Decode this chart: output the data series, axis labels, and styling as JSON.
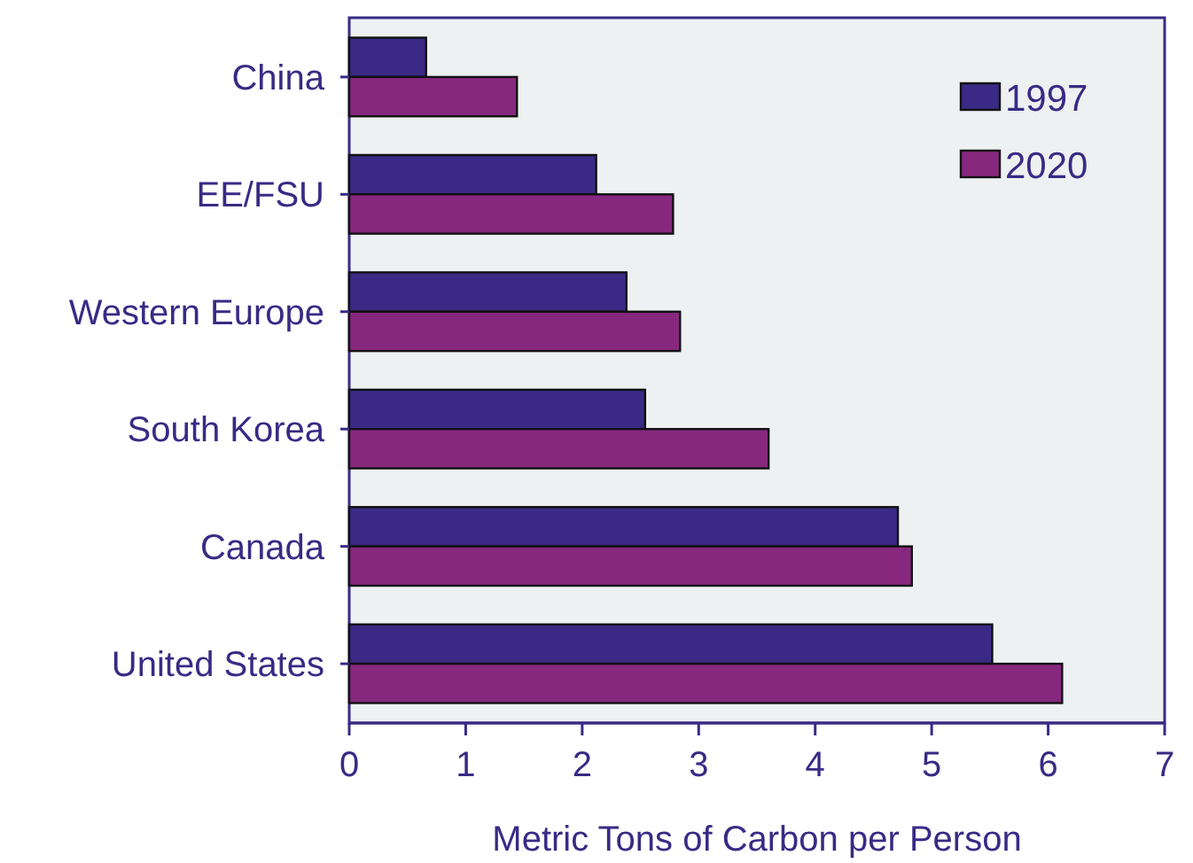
{
  "chart_data": {
    "type": "bar",
    "orientation": "horizontal",
    "xlabel": "Metric Tons of Carbon per Person",
    "categories": [
      "China",
      "EE/FSU",
      "Western Europe",
      "South Korea",
      "Canada",
      "United States"
    ],
    "series": [
      {
        "name": "1997",
        "color": "#3a2a85",
        "values": [
          0.66,
          2.12,
          2.38,
          2.54,
          4.71,
          5.52
        ]
      },
      {
        "name": "2020",
        "color": "#87287e",
        "values": [
          1.44,
          2.78,
          2.84,
          3.6,
          4.83,
          6.12
        ]
      }
    ],
    "xlim": [
      0,
      7
    ],
    "xticks": [
      0,
      1,
      2,
      3,
      4,
      5,
      6,
      7
    ],
    "legend": "top right",
    "grid": false
  }
}
